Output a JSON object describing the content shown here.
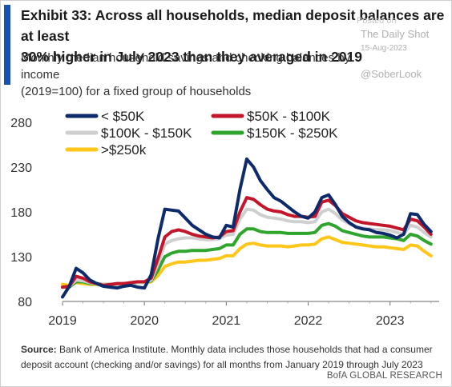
{
  "header": {
    "title": "Exhibit 33: Across all households, median deposit balances are at least\n30% higher in July 2023 than they averaged in 2019",
    "subtitle": "Monthly median household savings and checking balances by income\n(2019=100) for a fixed group of households"
  },
  "watermark": {
    "source_text": "Posted on",
    "name": "The Daily Shot",
    "date": "15-Aug-2023",
    "handle": "@SoberLook"
  },
  "footer": {
    "source_label": "Source:",
    "source_text": " Bank of America Institute. Monthly data includes those households  that had a consumer deposit account  (checking and/or savings)  for all months from January 2019 through July 2023",
    "brand": "BofA GLOBAL RESEARCH"
  },
  "chart_data": {
    "type": "line",
    "xlabel": "",
    "ylabel": "",
    "ylim": [
      80,
      280
    ],
    "yticks": [
      80,
      130,
      180,
      230,
      280
    ],
    "xticks": [
      "2019",
      "2020",
      "2021",
      "2022",
      "2023"
    ],
    "grid": false,
    "legend_position": "top-left",
    "x": [
      "2019-01",
      "2019-02",
      "2019-03",
      "2019-04",
      "2019-05",
      "2019-06",
      "2019-07",
      "2019-08",
      "2019-09",
      "2019-10",
      "2019-11",
      "2019-12",
      "2020-01",
      "2020-02",
      "2020-03",
      "2020-04",
      "2020-05",
      "2020-06",
      "2020-07",
      "2020-08",
      "2020-09",
      "2020-10",
      "2020-11",
      "2020-12",
      "2021-01",
      "2021-02",
      "2021-03",
      "2021-04",
      "2021-05",
      "2021-06",
      "2021-07",
      "2021-08",
      "2021-09",
      "2021-10",
      "2021-11",
      "2021-12",
      "2022-01",
      "2022-02",
      "2022-03",
      "2022-04",
      "2022-05",
      "2022-06",
      "2022-07",
      "2022-08",
      "2022-09",
      "2022-10",
      "2022-11",
      "2022-12",
      "2023-01",
      "2023-02",
      "2023-03",
      "2023-04",
      "2023-05",
      "2023-06",
      "2023-07"
    ],
    "series": [
      {
        "name": "< $50K",
        "color": "#0d2a6b",
        "values": [
          85,
          97,
          117,
          112,
          104,
          100,
          97,
          96,
          95,
          97,
          98,
          96,
          95,
          110,
          150,
          183,
          182,
          181,
          173,
          165,
          160,
          155,
          152,
          151,
          165,
          163,
          205,
          239,
          230,
          215,
          205,
          196,
          192,
          186,
          180,
          175,
          173,
          180,
          196,
          199,
          188,
          175,
          168,
          163,
          161,
          160,
          157,
          156,
          154,
          151,
          155,
          178,
          177,
          166,
          158
        ]
      },
      {
        "name": "$50K - $100K",
        "color": "#c4162a",
        "values": [
          96,
          97,
          108,
          106,
          102,
          100,
          98,
          99,
          100,
          100,
          101,
          102,
          102,
          106,
          128,
          152,
          158,
          160,
          158,
          155,
          153,
          152,
          151,
          152,
          158,
          159,
          180,
          196,
          194,
          188,
          183,
          181,
          180,
          177,
          175,
          175,
          174,
          175,
          191,
          193,
          187,
          178,
          174,
          170,
          168,
          167,
          166,
          165,
          164,
          162,
          160,
          172,
          170,
          163,
          155
        ]
      },
      {
        "name": "$100K - $150K",
        "color": "#cfcfcf",
        "values": [
          96,
          97,
          104,
          103,
          101,
          100,
          99,
          99,
          99,
          100,
          100,
          101,
          101,
          104,
          122,
          144,
          148,
          150,
          151,
          151,
          150,
          149,
          149,
          150,
          154,
          155,
          172,
          183,
          182,
          177,
          174,
          173,
          172,
          170,
          169,
          169,
          168,
          169,
          180,
          183,
          178,
          171,
          167,
          164,
          162,
          161,
          160,
          160,
          159,
          157,
          155,
          165,
          163,
          157,
          152
        ]
      },
      {
        "name": "$150K - $250K",
        "color": "#2fa52e",
        "values": [
          96,
          96,
          102,
          102,
          100,
          100,
          99,
          99,
          99,
          100,
          100,
          101,
          101,
          103,
          115,
          130,
          134,
          136,
          136,
          137,
          137,
          137,
          138,
          139,
          143,
          143,
          155,
          161,
          161,
          158,
          157,
          157,
          157,
          156,
          156,
          156,
          156,
          157,
          165,
          167,
          164,
          159,
          157,
          155,
          153,
          152,
          152,
          152,
          151,
          150,
          148,
          155,
          153,
          148,
          144
        ]
      },
      {
        "name": ">$250k",
        "color": "#ffc61a",
        "values": [
          99,
          98,
          101,
          100,
          99,
          99,
          99,
          99,
          99,
          100,
          100,
          101,
          101,
          102,
          109,
          119,
          122,
          124,
          124,
          125,
          126,
          126,
          127,
          128,
          131,
          131,
          139,
          144,
          145,
          143,
          142,
          142,
          142,
          141,
          142,
          143,
          143,
          144,
          150,
          152,
          149,
          146,
          145,
          144,
          143,
          142,
          141,
          141,
          140,
          139,
          138,
          143,
          142,
          136,
          131
        ]
      }
    ]
  }
}
